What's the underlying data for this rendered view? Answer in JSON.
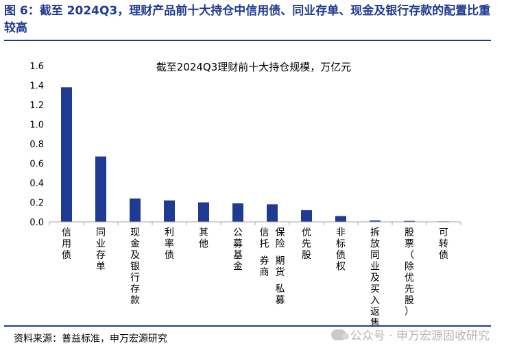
{
  "figure_title": "图 6：截至 2024Q3，理财产品前十大持仓中信用债、同业存单、现金及银行存款的配置比重较高",
  "source_note": "资料来源：普益标准，申万宏源研究",
  "watermark_text": "公众号 · 申万宏源固收研究",
  "colors": {
    "bar": "#1f3a93",
    "title": "#1f3a93",
    "axis": "#a6a6a6"
  },
  "chart_data": {
    "type": "bar",
    "title": "截至2024Q3理财前十大持仓规模，万亿元",
    "xlabel": "",
    "ylabel": "",
    "ylim": [
      0,
      1.6
    ],
    "yticks": [
      "0.0",
      "0.2",
      "0.4",
      "0.6",
      "0.8",
      "1.0",
      "1.2",
      "1.4",
      "1.6"
    ],
    "categories": [
      "信用债",
      "同业存单",
      "现金及银行存款",
      "利率债",
      "其他",
      "公募基金",
      "保险、期货、私募、信托、券商",
      "优先股",
      "非标债权",
      "拆放同业及买入返售",
      "股票（除优先股）",
      "可转债"
    ],
    "category_label_lines": [
      [
        "信用债"
      ],
      [
        "同业存单"
      ],
      [
        "现金及银行存款"
      ],
      [
        "利率债"
      ],
      [
        "其他"
      ],
      [
        "公募基金"
      ],
      [
        "保险",
        "期货",
        "私募",
        "信托",
        "券商"
      ],
      [
        "优先股"
      ],
      [
        "非标债权"
      ],
      [
        "拆放同业及买入返售"
      ],
      [
        "股票（除优先股）"
      ],
      [
        "可转债"
      ]
    ],
    "values": [
      1.38,
      0.67,
      0.24,
      0.22,
      0.2,
      0.19,
      0.18,
      0.12,
      0.06,
      0.015,
      0.01,
      0.005
    ],
    "grid": false,
    "legend": "none"
  }
}
